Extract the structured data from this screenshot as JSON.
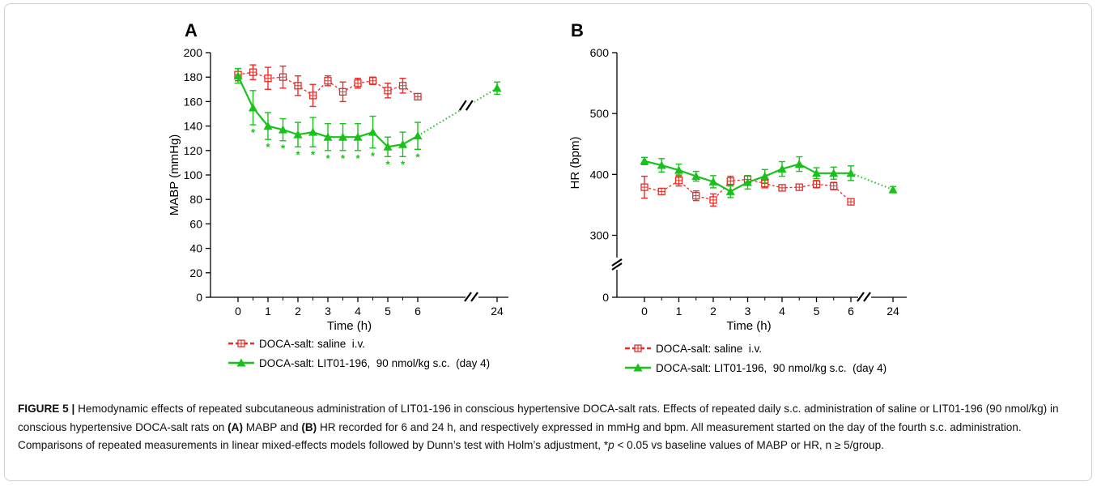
{
  "figure": {
    "caption_label": "FIGURE 5 |",
    "caption_p1": "Hemodynamic effects of repeated subcutaneous administration of LIT01-196 in conscious hypertensive DOCA-salt rats. Effects of repeated daily s.c. administration of saline or LIT01-196 (90 nmol/kg) in conscious hypertensive DOCA-salt rats on ",
    "caption_a": "(A)",
    "caption_p2": " MABP and ",
    "caption_b": "(B)",
    "caption_p3": " HR recorded for 6 and 24 h, and respectively expressed in mmHg and bpm. All measurement started on the day of the fourth s.c. administration. Comparisons of repeated measurements in linear mixed-effects models followed by Dunn’s test with Holm’s adjustment, *",
    "caption_p_italic": "p",
    "caption_p4": " < 0.05 vs baseline values of MABP or HR, n ≥ 5/group."
  },
  "colors": {
    "saline": "#ee2a24",
    "lit": "#19c21b",
    "axis": "#000000"
  },
  "chart_data": [
    {
      "panel": "A",
      "type": "line",
      "xlabel": "Time (h)",
      "ylabel": "MABP (mmHg)",
      "xticks": [
        "0",
        "1",
        "2",
        "3",
        "4",
        "5",
        "6",
        "24"
      ],
      "ylim": [
        0,
        200
      ],
      "yticks": [
        "0",
        "20",
        "40",
        "60",
        "80",
        "100",
        "120",
        "140",
        "160",
        "180",
        "200"
      ],
      "axis_break": "x between 6 and 24",
      "series": [
        {
          "name": "DOCA-salt: saline i.v.",
          "marker": "open-square",
          "line": "dashed",
          "x": [
            0,
            0.5,
            1,
            1.5,
            2,
            2.5,
            3,
            3.5,
            4,
            4.5,
            5,
            5.5,
            6
          ],
          "y": [
            182,
            184,
            179,
            180,
            173,
            165,
            177,
            168,
            175,
            177,
            169,
            173,
            164
          ],
          "err": [
            5,
            6,
            9,
            9,
            8,
            9,
            4,
            8,
            4,
            3,
            6,
            6,
            0
          ]
        },
        {
          "name": "DOCA-salt: LIT01-196, 90 nmol/kg s.c. (day 4)",
          "marker": "filled-triangle",
          "line": "solid",
          "x": [
            0,
            0.5,
            1,
            1.5,
            2,
            2.5,
            3,
            3.5,
            4,
            4.5,
            5,
            5.5,
            6,
            24
          ],
          "y": [
            181,
            155,
            140,
            137,
            133,
            135,
            131,
            131,
            131,
            135,
            123,
            125,
            132,
            171
          ],
          "err": [
            6,
            14,
            11,
            9,
            10,
            12,
            11,
            11,
            11,
            13,
            8,
            10,
            11,
            5
          ],
          "significant_x": [
            0.5,
            1,
            1.5,
            2,
            2.5,
            3,
            3.5,
            4,
            4.5,
            5,
            5.5,
            6
          ]
        }
      ],
      "significance_label": "*"
    },
    {
      "panel": "B",
      "type": "line",
      "xlabel": "Time (h)",
      "ylabel": "HR (bpm)",
      "xticks": [
        "0",
        "1",
        "2",
        "3",
        "4",
        "5",
        "6",
        "24"
      ],
      "ylim": [
        0,
        600
      ],
      "yticks": [
        "0",
        "300",
        "400",
        "500",
        "600"
      ],
      "axis_break": "y between 0 and 300; x between 6 and 24",
      "series": [
        {
          "name": "DOCA-salt: saline i.v.",
          "marker": "open-square",
          "line": "dashed",
          "x": [
            0,
            0.5,
            1,
            1.5,
            2,
            2.5,
            3,
            3.5,
            4,
            4.5,
            5,
            5.5,
            6
          ],
          "y": [
            379,
            372,
            390,
            365,
            358,
            389,
            392,
            385,
            378,
            379,
            384,
            381,
            355
          ],
          "err": [
            18,
            4,
            9,
            8,
            10,
            8,
            6,
            7,
            4,
            4,
            6,
            6,
            0
          ]
        },
        {
          "name": "DOCA-salt: LIT01-196, 90 nmol/kg s.c. (day 4)",
          "marker": "filled-triangle",
          "line": "solid",
          "x": [
            0,
            0.5,
            1,
            1.5,
            2,
            2.5,
            3,
            3.5,
            4,
            4.5,
            5,
            5.5,
            6,
            24
          ],
          "y": [
            422,
            415,
            407,
            397,
            388,
            372,
            387,
            397,
            409,
            417,
            402,
            402,
            402,
            375
          ],
          "err": [
            6,
            11,
            10,
            8,
            10,
            10,
            11,
            11,
            12,
            12,
            9,
            10,
            12,
            5
          ]
        }
      ]
    }
  ],
  "legends": [
    {
      "panel": "A",
      "items": [
        "DOCA-salt: saline  i.v.",
        "DOCA-salt: LIT01-196,  90 nmol/kg s.c.  (day 4)"
      ]
    },
    {
      "panel": "B",
      "items": [
        "DOCA-salt: saline  i.v.",
        "DOCA-salt: LIT01-196,  90 nmol/kg s.c.  (day 4)"
      ]
    }
  ]
}
